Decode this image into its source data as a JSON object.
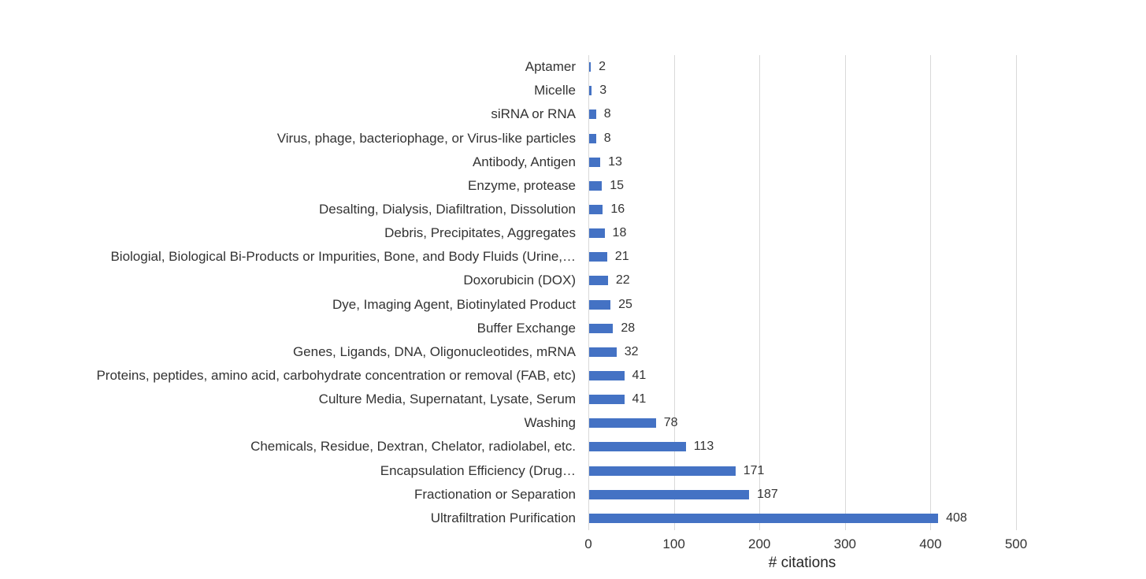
{
  "chart_data": {
    "type": "bar",
    "orientation": "horizontal",
    "title": "",
    "xlabel": "# citations",
    "ylabel": "",
    "xlim": [
      0,
      500
    ],
    "xticks": [
      0,
      100,
      200,
      300,
      400,
      500
    ],
    "grid": true,
    "legend": false,
    "bar_color": "#4472c4",
    "gridline_color": "#d9d9d9",
    "text_color": "#333333",
    "categories": [
      "Aptamer",
      "Micelle",
      "siRNA or RNA",
      "Virus, phage, bacteriophage, or Virus-like particles",
      "Antibody, Antigen",
      "Enzyme, protease",
      "Desalting, Dialysis, Diafiltration, Dissolution",
      "Debris, Precipitates, Aggregates",
      "Biologial, Biological Bi-Products or Impurities, Bone, and Body Fluids (Urine,…",
      "Doxorubicin (DOX)",
      "Dye, Imaging Agent, Biotinylated Product",
      "Buffer Exchange",
      "Genes, Ligands, DNA, Oligonucleotides, mRNA",
      "Proteins, peptides, amino acid, carbohydrate concentration or removal (FAB, etc)",
      "Culture Media, Supernatant, Lysate, Serum",
      "Washing",
      "Chemicals, Residue, Dextran, Chelator, radiolabel, etc.",
      "Encapsulation Efficiency (Drug…",
      "Fractionation or Separation",
      "Ultrafiltration Purification"
    ],
    "values": [
      2,
      3,
      8,
      8,
      13,
      15,
      16,
      18,
      21,
      22,
      25,
      28,
      32,
      41,
      41,
      78,
      113,
      171,
      187,
      408
    ]
  }
}
